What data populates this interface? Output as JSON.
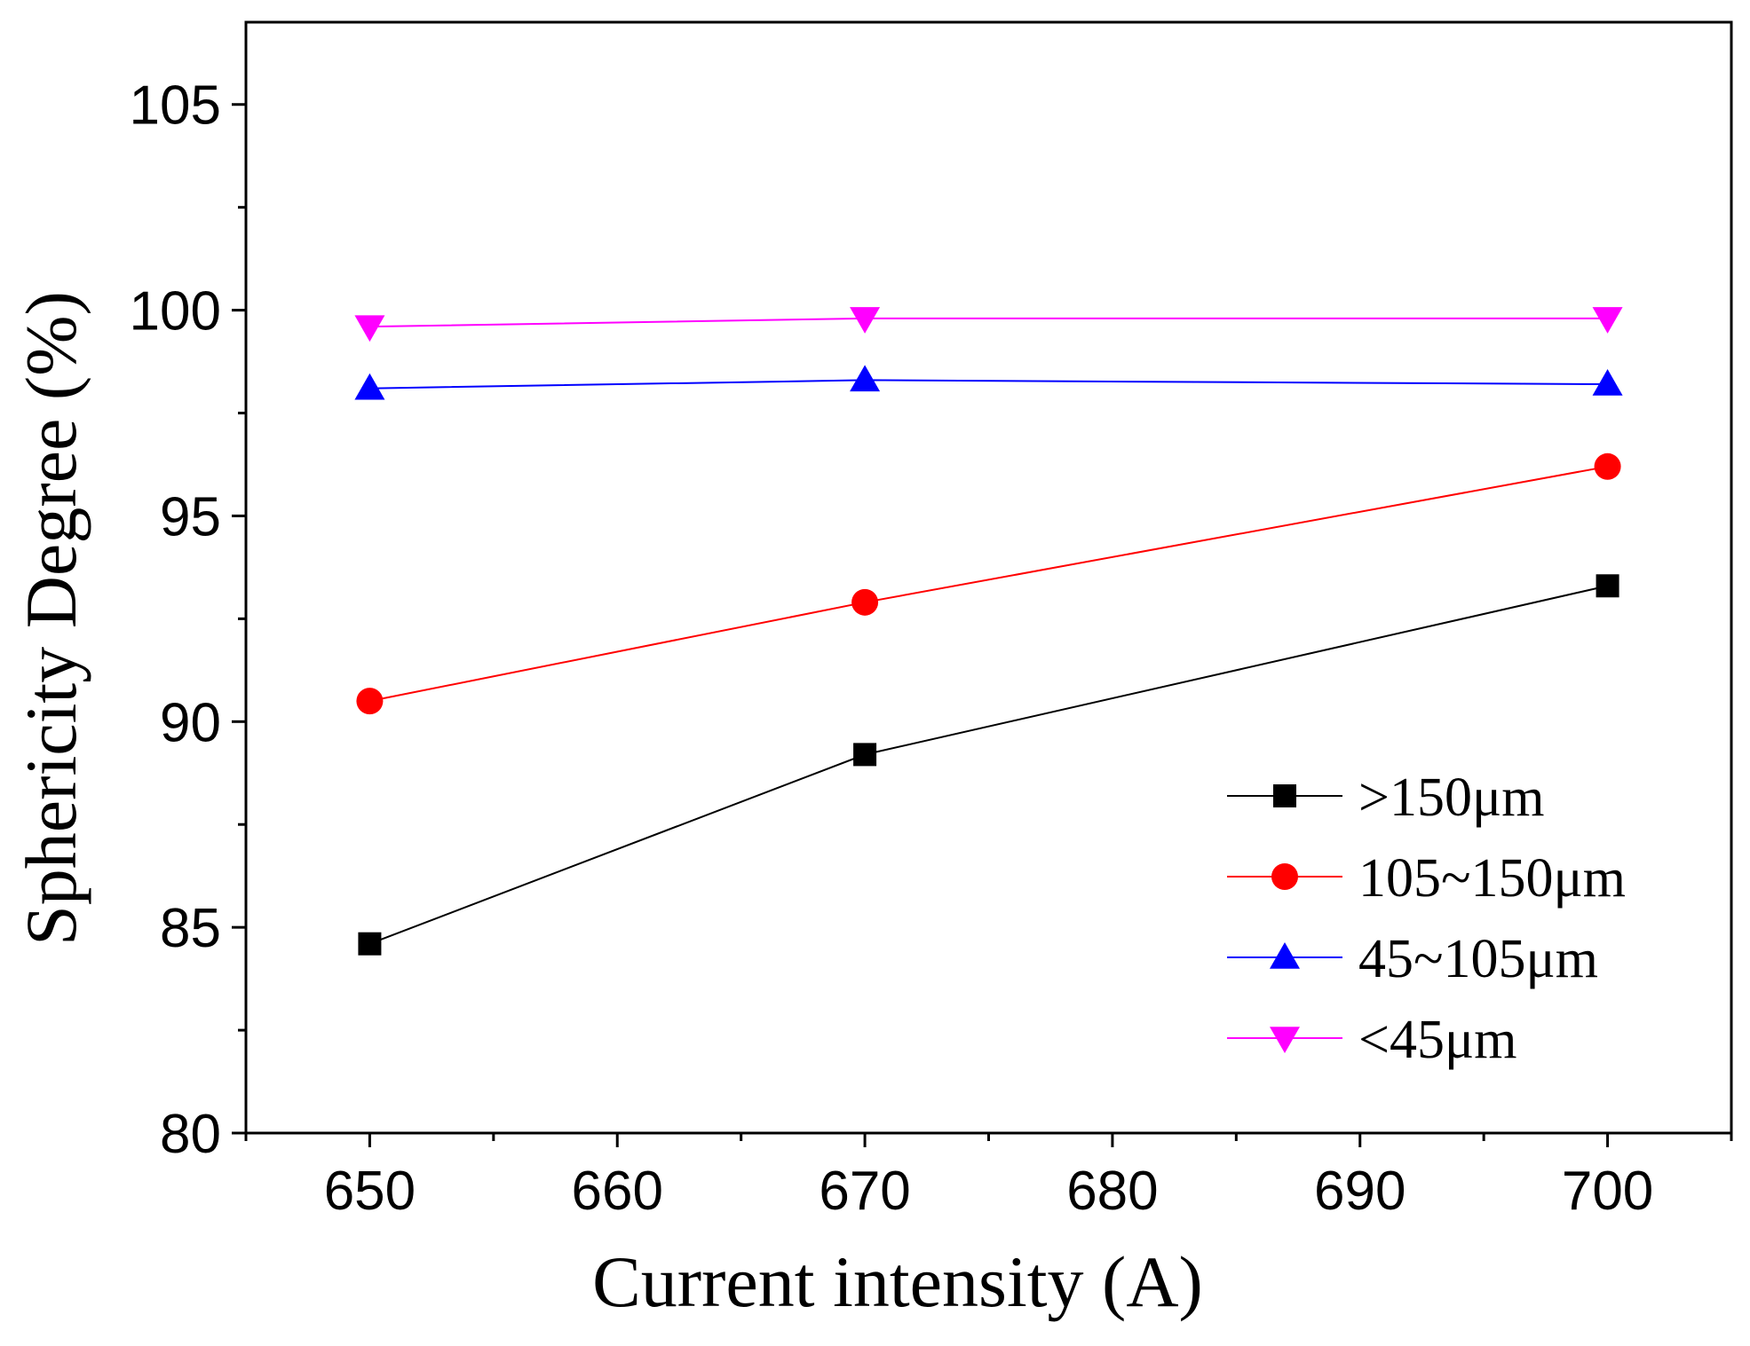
{
  "chart_data": {
    "type": "line",
    "title": "",
    "xlabel": "Current intensity (A)",
    "ylabel": "Sphericity Degree (%)",
    "xlim": [
      645,
      705
    ],
    "ylim": [
      80,
      107
    ],
    "xticks": [
      650,
      660,
      670,
      680,
      690,
      700
    ],
    "xtick_labels": [
      "650",
      "660",
      "670",
      "680",
      "690",
      "700"
    ],
    "yticks": [
      80,
      85,
      90,
      95,
      100,
      105
    ],
    "ytick_labels": [
      "80",
      "85",
      "90",
      "95",
      "100",
      "105"
    ],
    "x": [
      650,
      670,
      700
    ],
    "series": [
      {
        "name": ">150μm",
        "values": [
          84.6,
          89.2,
          93.3
        ],
        "color": "#000000",
        "marker": "square"
      },
      {
        "name": "105~150μm",
        "values": [
          90.5,
          92.9,
          96.2
        ],
        "color": "#ff0000",
        "marker": "circle"
      },
      {
        "name": "45~105μm",
        "values": [
          98.1,
          98.3,
          98.2
        ],
        "color": "#0000ff",
        "marker": "triangle-up"
      },
      {
        "name": "<45μm",
        "values": [
          99.6,
          99.8,
          99.8
        ],
        "color": "#ff00ff",
        "marker": "triangle-down"
      }
    ],
    "legend": "bottom-right",
    "grid": false
  }
}
